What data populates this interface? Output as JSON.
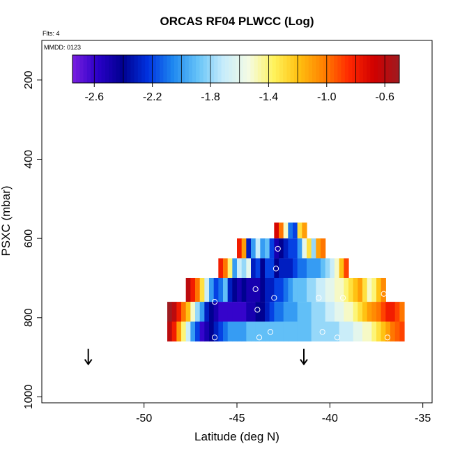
{
  "chart_data": {
    "type": "heatmap",
    "title": "ORCAS RF04 PLWCC (Log)",
    "flights_label": "Flts: 4",
    "date_label": "MMDD: 0123",
    "xlabel": "Latitude (deg N)",
    "ylabel": "PSXC (mbar)",
    "xlim": [
      -55.5,
      -34.5
    ],
    "ylim": [
      1015,
      100
    ],
    "xticks": [
      -50,
      -45,
      -40,
      -35
    ],
    "yticks": [
      200,
      400,
      600,
      800,
      1000
    ],
    "colorbar": {
      "min": -2.75,
      "max": -0.5,
      "ticks": [
        -2.6,
        -2.2,
        -1.8,
        -1.4,
        -1.0,
        -0.6
      ],
      "stops": [
        "#7a1fe0",
        "#2a00c8",
        "#00008f",
        "#0032e0",
        "#1e88f0",
        "#67c4f8",
        "#c7ecfb",
        "#f4fbe4",
        "#fff35c",
        "#ffc010",
        "#ff8000",
        "#ff2800",
        "#d00000",
        "#9e1b20"
      ]
    },
    "bin_width_deg": 0.25,
    "rows": [
      {
        "p_top": 560,
        "p_bot": 600,
        "x0": -43.0,
        "values": [
          -0.7,
          -1.0,
          -1.5,
          -2.1,
          -2.2,
          -1.3,
          -1.1
        ]
      },
      {
        "p_top": 600,
        "p_bot": 650,
        "x0": -45.0,
        "values": [
          -0.8,
          -1.1,
          -2.3,
          -2.0,
          -1.7,
          -2.0,
          -1.9,
          -2.2,
          -2.5,
          -2.4,
          -2.3,
          -2.2,
          -2.2,
          -2.0,
          -1.6,
          -1.3,
          -1.8,
          -1.1,
          -1.0
        ]
      },
      {
        "p_top": 650,
        "p_bot": 700,
        "x0": -46.0,
        "values": [
          -0.8,
          -1.0,
          -1.4,
          -2.0,
          -1.7,
          -1.8,
          -1.6,
          -2.3,
          -2.2,
          -2.4,
          -2.2,
          -2.2,
          -2.4,
          -2.3,
          -2.3,
          -2.3,
          -2.2,
          -2.1,
          -2.1,
          -2.0,
          -2.0,
          -2.0,
          -1.9,
          -1.8,
          -1.7,
          -1.5,
          -1.2,
          -0.9
        ]
      },
      {
        "p_top": 700,
        "p_bot": 760,
        "x0": -47.75,
        "values": [
          -0.6,
          -0.8,
          -1.0,
          -1.3,
          -1.7,
          -2.0,
          -2.2,
          -2.1,
          -1.9,
          -2.3,
          -2.4,
          -2.5,
          -2.4,
          -2.5,
          -2.5,
          -2.5,
          -2.4,
          -2.3,
          -2.3,
          -2.2,
          -2.2,
          -2.1,
          -2.0,
          -1.9,
          -1.9,
          -1.9,
          -1.8,
          -1.8,
          -1.7,
          -1.7,
          -1.6,
          -1.6,
          -1.5,
          -1.5,
          -1.4,
          -1.3,
          -1.2,
          -1.1,
          -1.3,
          -1.5,
          -1.4,
          -1.2,
          -1.05
        ]
      },
      {
        "p_top": 760,
        "p_bot": 810,
        "x0": -48.75,
        "values": [
          -0.5,
          -0.6,
          -0.8,
          -1.0,
          -1.2,
          -1.5,
          -1.8,
          -2.0,
          -2.3,
          -2.4,
          -2.5,
          -2.6,
          -2.6,
          -2.6,
          -2.6,
          -2.6,
          -2.6,
          -2.5,
          -2.5,
          -2.4,
          -2.4,
          -2.3,
          -2.2,
          -2.1,
          -2.1,
          -2.0,
          -2.0,
          -2.0,
          -1.9,
          -1.9,
          -1.9,
          -1.8,
          -1.8,
          -1.8,
          -1.7,
          -1.7,
          -1.6,
          -1.6,
          -1.5,
          -1.5,
          -1.4,
          -1.3,
          -1.2,
          -1.1,
          -1.05,
          -1.0,
          -0.9,
          -0.8,
          -0.8,
          -0.9,
          -1.0
        ]
      },
      {
        "p_top": 810,
        "p_bot": 860,
        "x0": -48.75,
        "values": [
          -0.6,
          -0.8,
          -1.1,
          -1.4,
          -1.7,
          -2.0,
          -2.2,
          -2.6,
          -2.5,
          -2.4,
          -2.3,
          -2.2,
          -2.1,
          -2.0,
          -2.0,
          -2.0,
          -2.0,
          -1.9,
          -1.9,
          -1.9,
          -1.9,
          -1.9,
          -1.9,
          -1.9,
          -1.9,
          -1.9,
          -1.9,
          -1.9,
          -1.9,
          -1.9,
          -1.9,
          -1.8,
          -1.8,
          -1.8,
          -1.8,
          -1.8,
          -1.8,
          -1.7,
          -1.7,
          -1.7,
          -1.6,
          -1.6,
          -1.5,
          -1.5,
          -1.4,
          -1.3,
          -1.2,
          -1.1,
          -1.0,
          -0.95,
          -0.9
        ]
      }
    ],
    "markers": [
      {
        "lat": -46.2,
        "p": 760
      },
      {
        "lat": -46.2,
        "p": 850
      },
      {
        "lat": -44.0,
        "p": 728
      },
      {
        "lat": -43.9,
        "p": 780
      },
      {
        "lat": -43.8,
        "p": 850
      },
      {
        "lat": -43.2,
        "p": 836
      },
      {
        "lat": -43.0,
        "p": 750
      },
      {
        "lat": -42.9,
        "p": 676
      },
      {
        "lat": -42.8,
        "p": 626
      },
      {
        "lat": -40.6,
        "p": 750
      },
      {
        "lat": -40.4,
        "p": 836
      },
      {
        "lat": -39.6,
        "p": 850
      },
      {
        "lat": -39.3,
        "p": 750
      },
      {
        "lat": -37.1,
        "p": 740
      },
      {
        "lat": -36.9,
        "p": 850
      }
    ],
    "arrows": [
      {
        "lat": -53.0,
        "p": 900
      },
      {
        "lat": -41.4,
        "p": 900
      }
    ]
  }
}
